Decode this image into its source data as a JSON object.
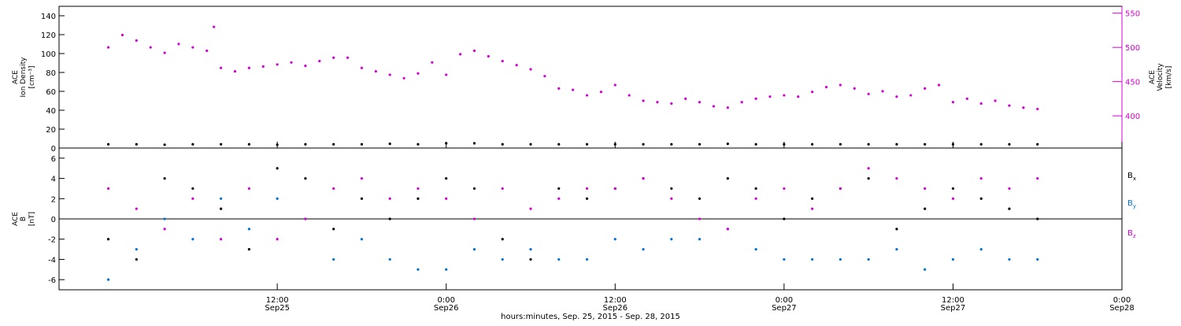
{
  "chart_data": [
    {
      "type": "scatter",
      "panel": "top",
      "ylabel_lines": [
        "ACE",
        "Ion Density"
      ],
      "yunit": "[cm⁻³]",
      "y2label_lines": [
        "ACE",
        "Velocity"
      ],
      "y2unit": "[km/s]",
      "ylim": [
        0,
        150
      ],
      "yticks": [
        0,
        20,
        40,
        60,
        80,
        100,
        120,
        140
      ],
      "y2lim": [
        353,
        560
      ],
      "y2ticks": [
        400,
        450,
        500,
        550
      ],
      "series": [
        {
          "axis": "left",
          "color": "#000000",
          "x": [
            0,
            2,
            4,
            6,
            8,
            10,
            12,
            14,
            16,
            18,
            20,
            22,
            24,
            26,
            28,
            30,
            32,
            34,
            36,
            38,
            40,
            42,
            44,
            46,
            48,
            50,
            52,
            54,
            56,
            58,
            60,
            62,
            64,
            66
          ],
          "y": [
            4,
            4,
            3.5,
            4,
            4,
            4,
            3.5,
            4,
            4,
            4,
            4.5,
            4,
            5,
            5,
            4,
            4,
            4,
            4,
            4,
            4,
            4,
            4,
            4.5,
            4,
            4,
            4,
            4,
            4,
            4,
            4,
            4,
            4,
            4,
            4
          ]
        },
        {
          "axis": "right",
          "color": "#d400d4",
          "x": [
            0,
            1,
            2,
            3,
            4,
            5,
            6,
            7,
            7.5,
            8,
            9,
            10,
            11,
            12,
            13,
            14,
            15,
            16,
            17,
            18,
            19,
            20,
            21,
            22,
            23,
            24,
            25,
            26,
            27,
            28,
            29,
            30,
            31,
            32,
            33,
            34,
            35,
            36,
            37,
            38,
            39,
            40,
            41,
            42,
            43,
            44,
            45,
            46,
            47,
            48,
            49,
            50,
            51,
            52,
            53,
            54,
            55,
            56,
            57,
            58,
            59,
            60,
            61,
            62,
            63,
            64,
            65,
            66
          ],
          "y": [
            500,
            518,
            510,
            500,
            492,
            505,
            500,
            495,
            530,
            470,
            465,
            470,
            472,
            475,
            478,
            473,
            480,
            485,
            485,
            470,
            465,
            460,
            455,
            462,
            478,
            460,
            490,
            495,
            487,
            480,
            474,
            468,
            458,
            440,
            438,
            430,
            435,
            445,
            430,
            422,
            420,
            418,
            425,
            420,
            414,
            412,
            420,
            425,
            428,
            430,
            428,
            435,
            442,
            445,
            440,
            432,
            436,
            428,
            430,
            440,
            445,
            420,
            425,
            418,
            422,
            415,
            412,
            410
          ]
        }
      ]
    },
    {
      "type": "scatter",
      "panel": "bottom",
      "ylabel_lines": [
        "ACE",
        "B"
      ],
      "yunit": "[nT]",
      "ylim": [
        -7,
        7
      ],
      "yticks": [
        -6,
        -4,
        -2,
        0,
        2,
        4,
        6
      ],
      "legend_position": "right",
      "series": [
        {
          "name": "Bx",
          "color": "#000000",
          "x": [
            0,
            2,
            4,
            6,
            8,
            10,
            12,
            14,
            16,
            18,
            20,
            22,
            24,
            26,
            28,
            30,
            32,
            34,
            36,
            38,
            40,
            42,
            44,
            46,
            48,
            50,
            52,
            54,
            56,
            58,
            60,
            62,
            64,
            66
          ],
          "y": [
            -2,
            -4,
            4,
            3,
            1,
            -3,
            5,
            4,
            -1,
            2,
            0,
            2,
            4,
            3,
            -2,
            -4,
            3,
            2,
            3,
            4,
            3,
            2,
            4,
            3,
            0,
            2,
            3,
            4,
            -1,
            1,
            3,
            2,
            1,
            0
          ]
        },
        {
          "name": "By",
          "color": "#0072d6",
          "x": [
            0,
            2,
            4,
            6,
            8,
            10,
            12,
            14,
            16,
            18,
            20,
            22,
            24,
            26,
            28,
            30,
            32,
            34,
            36,
            38,
            40,
            42,
            44,
            46,
            48,
            50,
            52,
            54,
            56,
            58,
            60,
            62,
            64,
            66
          ],
          "y": [
            -6,
            -3,
            0,
            -2,
            2,
            -1,
            2,
            0,
            -4,
            -2,
            -4,
            -5,
            -5,
            -3,
            -4,
            -3,
            -4,
            -4,
            -2,
            -3,
            -2,
            -2,
            -1,
            -3,
            -4,
            -4,
            -4,
            -4,
            -3,
            -5,
            -4,
            -3,
            -4,
            -4
          ]
        },
        {
          "name": "Bz",
          "color": "#d400d4",
          "x": [
            0,
            2,
            4,
            6,
            8,
            10,
            12,
            14,
            16,
            18,
            20,
            22,
            24,
            26,
            28,
            30,
            32,
            34,
            36,
            38,
            40,
            42,
            44,
            46,
            48,
            50,
            52,
            54,
            56,
            58,
            60,
            62,
            64,
            66
          ],
          "y": [
            3,
            1,
            -1,
            2,
            -2,
            3,
            -2,
            0,
            3,
            4,
            2,
            3,
            2,
            0,
            3,
            1,
            2,
            3,
            3,
            4,
            2,
            0,
            -1,
            2,
            3,
            1,
            3,
            5,
            4,
            3,
            2,
            4,
            3,
            4
          ]
        }
      ]
    }
  ],
  "legend": {
    "bx": {
      "base": "B",
      "sub": "x"
    },
    "by": {
      "base": "B",
      "sub": "y"
    },
    "bz": {
      "base": "B",
      "sub": "z"
    }
  },
  "xaxis": {
    "x_unit": "hours since 00:00 Sep 25, 2015",
    "xlim": [
      -3.5,
      72
    ],
    "ticks": [
      {
        "x": 12,
        "time": "12:00",
        "date": "Sep25"
      },
      {
        "x": 24,
        "time": "0:00",
        "date": "Sep26"
      },
      {
        "x": 36,
        "time": "12:00",
        "date": "Sep26"
      },
      {
        "x": 48,
        "time": "0:00",
        "date": "Sep27"
      },
      {
        "x": 60,
        "time": "12:00",
        "date": "Sep27"
      },
      {
        "x": 72,
        "time": "0:00",
        "date": "Sep28"
      }
    ],
    "title": "hours:minutes, Sep. 25, 2015 - Sep. 28, 2015"
  }
}
